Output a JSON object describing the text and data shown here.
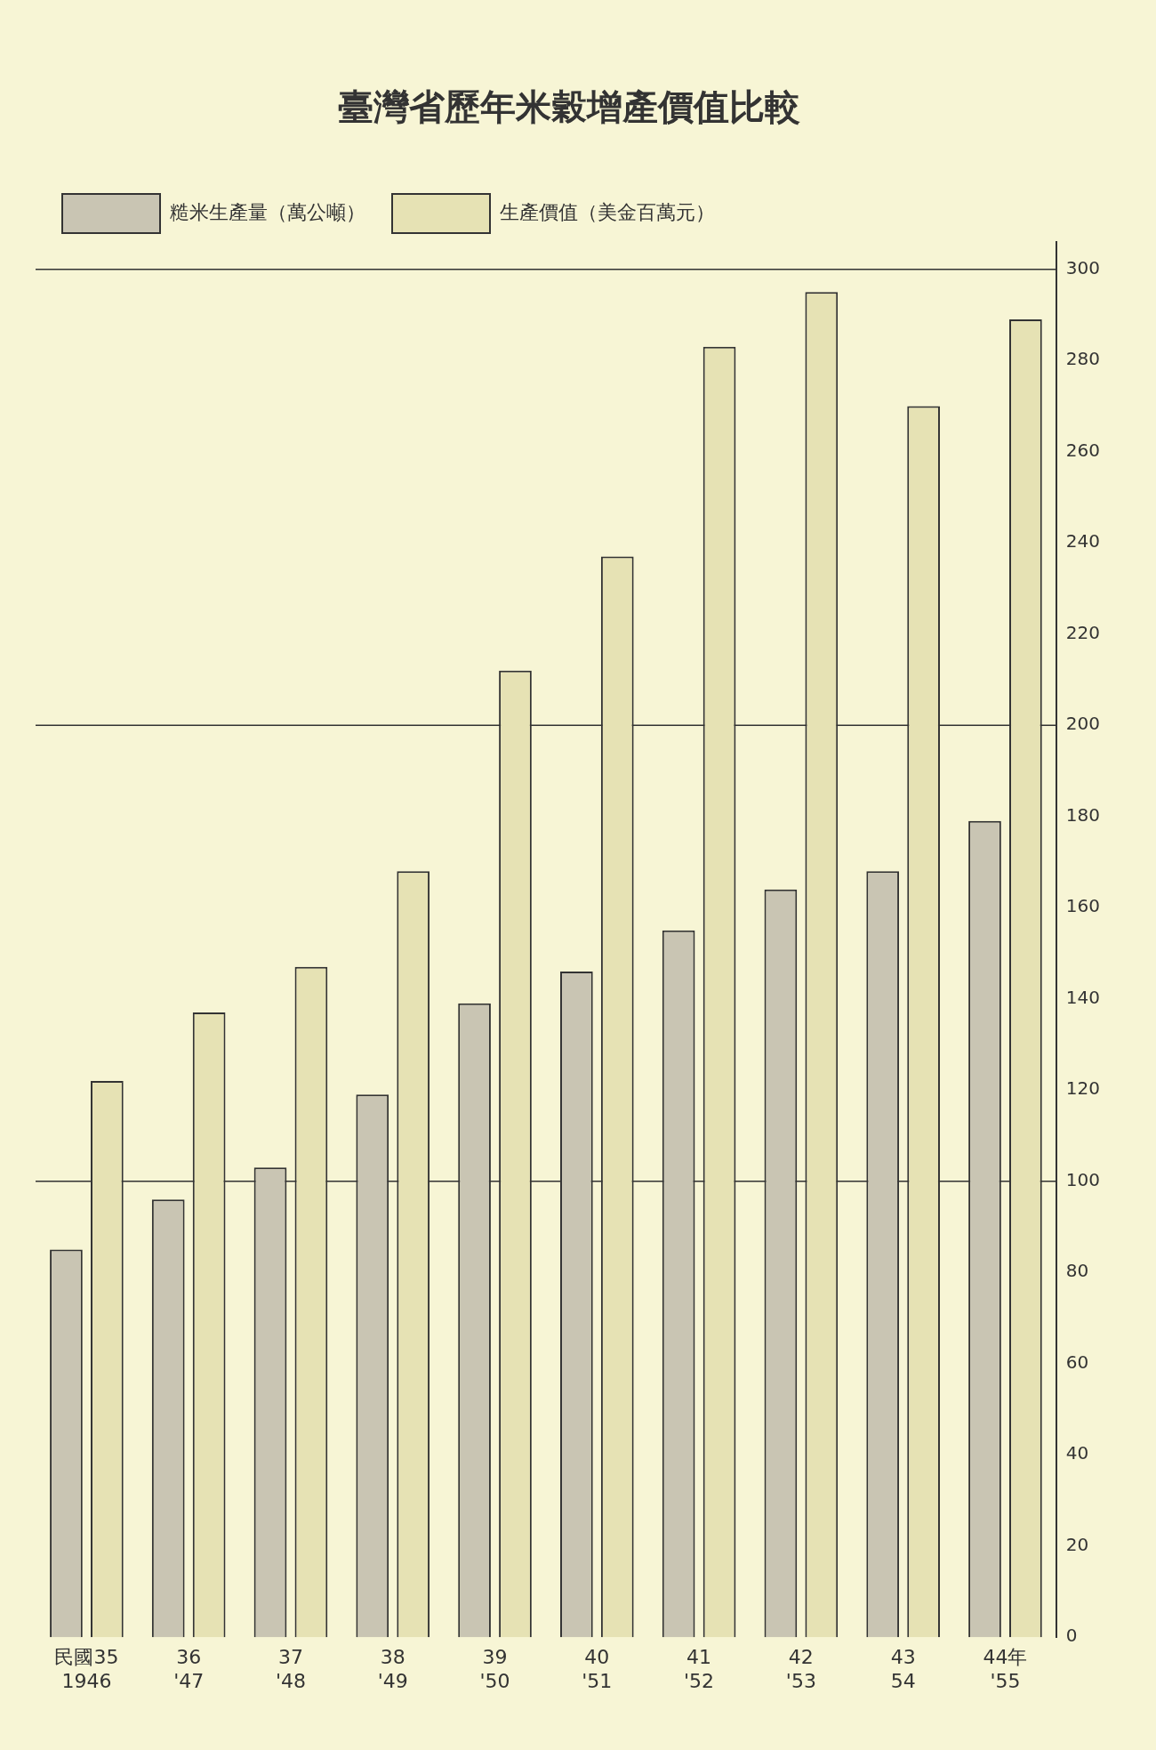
{
  "chart_data": {
    "type": "bar",
    "title": "臺灣省歷年米穀增產價值比較",
    "categories": [
      "民國35\n1946",
      "36\n'47",
      "37\n'48",
      "38\n'49",
      "39\n'50",
      "40\n'51",
      "41\n'52",
      "42\n'53",
      "43\n54",
      "44年\n'55"
    ],
    "series": [
      {
        "name": "糙米生產量（萬公噸）",
        "color": "#c9c5b3",
        "values": [
          85,
          96,
          103,
          119,
          139,
          146,
          155,
          164,
          168,
          179
        ]
      },
      {
        "name": "生產價值（美金百萬元）",
        "color": "#e6e2b4",
        "values": [
          122,
          137,
          147,
          168,
          212,
          237,
          283,
          295,
          270,
          289
        ]
      }
    ],
    "ylim": [
      0,
      306
    ],
    "yticks": [
      0,
      20,
      40,
      60,
      80,
      100,
      120,
      140,
      160,
      180,
      200,
      220,
      240,
      260,
      280,
      300
    ],
    "ref_lines": [
      {
        "axis": "y",
        "value": 100
      },
      {
        "axis": "y",
        "value": 200
      },
      {
        "axis": "y",
        "value": 300
      }
    ],
    "grid": false,
    "legend": "top left"
  }
}
